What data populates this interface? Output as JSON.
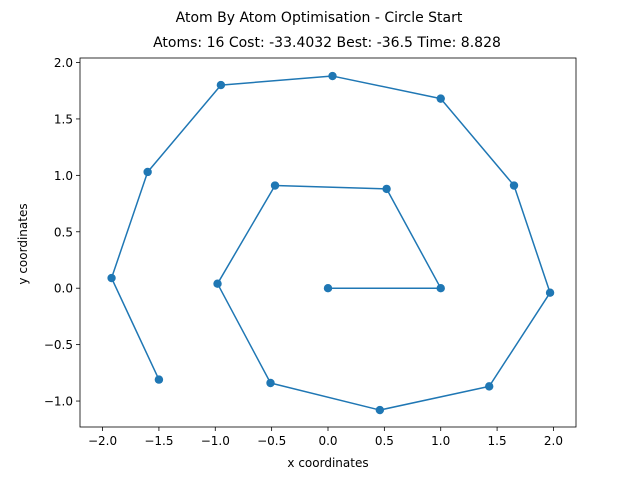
{
  "chart_data": {
    "type": "line",
    "title": "Atom By Atom Optimisation - Circle Start",
    "subtitle": "Atoms: 16 Cost: -33.4032 Best: -36.5 Time: 8.828",
    "xlabel": "x coordinates",
    "ylabel": "y coordinates",
    "xlim": [
      -2.2,
      2.2
    ],
    "ylim": [
      -1.23,
      2.04
    ],
    "xticks": [
      -2.0,
      -1.5,
      -1.0,
      -0.5,
      0.0,
      0.5,
      1.0,
      1.5,
      2.0
    ],
    "xtick_labels": [
      "−2.0",
      "−1.5",
      "−1.0",
      "−0.5",
      "0.0",
      "0.5",
      "1.0",
      "1.5",
      "2.0"
    ],
    "yticks": [
      -1.0,
      -0.5,
      0.0,
      0.5,
      1.0,
      1.5,
      2.0
    ],
    "ytick_labels": [
      "−1.0",
      "−0.5",
      "0.0",
      "0.5",
      "1.0",
      "1.5",
      "2.0"
    ],
    "grid": false,
    "color": "#1f77b4",
    "series": [
      {
        "x": [
          0.0,
          1.0,
          0.52,
          -0.47,
          -0.98,
          -0.51,
          0.46,
          1.43,
          1.97,
          1.65,
          1.0,
          0.04,
          -0.95,
          -1.6,
          -1.92,
          -1.5
        ],
        "y": [
          0.0,
          0.0,
          0.88,
          0.91,
          0.04,
          -0.84,
          -1.08,
          -0.87,
          -0.04,
          0.91,
          1.68,
          1.88,
          1.8,
          1.03,
          0.09,
          -0.81
        ]
      }
    ]
  }
}
